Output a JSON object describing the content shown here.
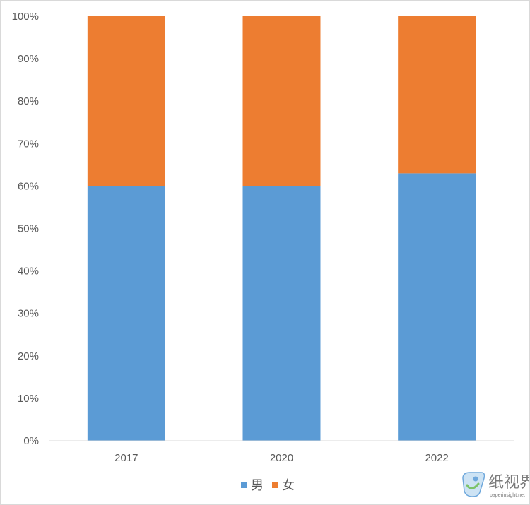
{
  "chart_data": {
    "type": "bar",
    "stacked": true,
    "categories": [
      "2017",
      "2020",
      "2022"
    ],
    "series": [
      {
        "name": "男",
        "values": [
          60,
          60,
          63
        ]
      },
      {
        "name": "女",
        "values": [
          40,
          40,
          37
        ]
      }
    ],
    "ylim": [
      0,
      100
    ],
    "y_ticks": [
      "0%",
      "10%",
      "20%",
      "30%",
      "40%",
      "50%",
      "60%",
      "70%",
      "80%",
      "90%",
      "100%"
    ],
    "grid": false,
    "legend_position": "bottom",
    "colors": [
      "#5b9bd5",
      "#ed7d31"
    ]
  },
  "watermark": {
    "text": "纸视界",
    "subtext": "paperinsight.net"
  }
}
